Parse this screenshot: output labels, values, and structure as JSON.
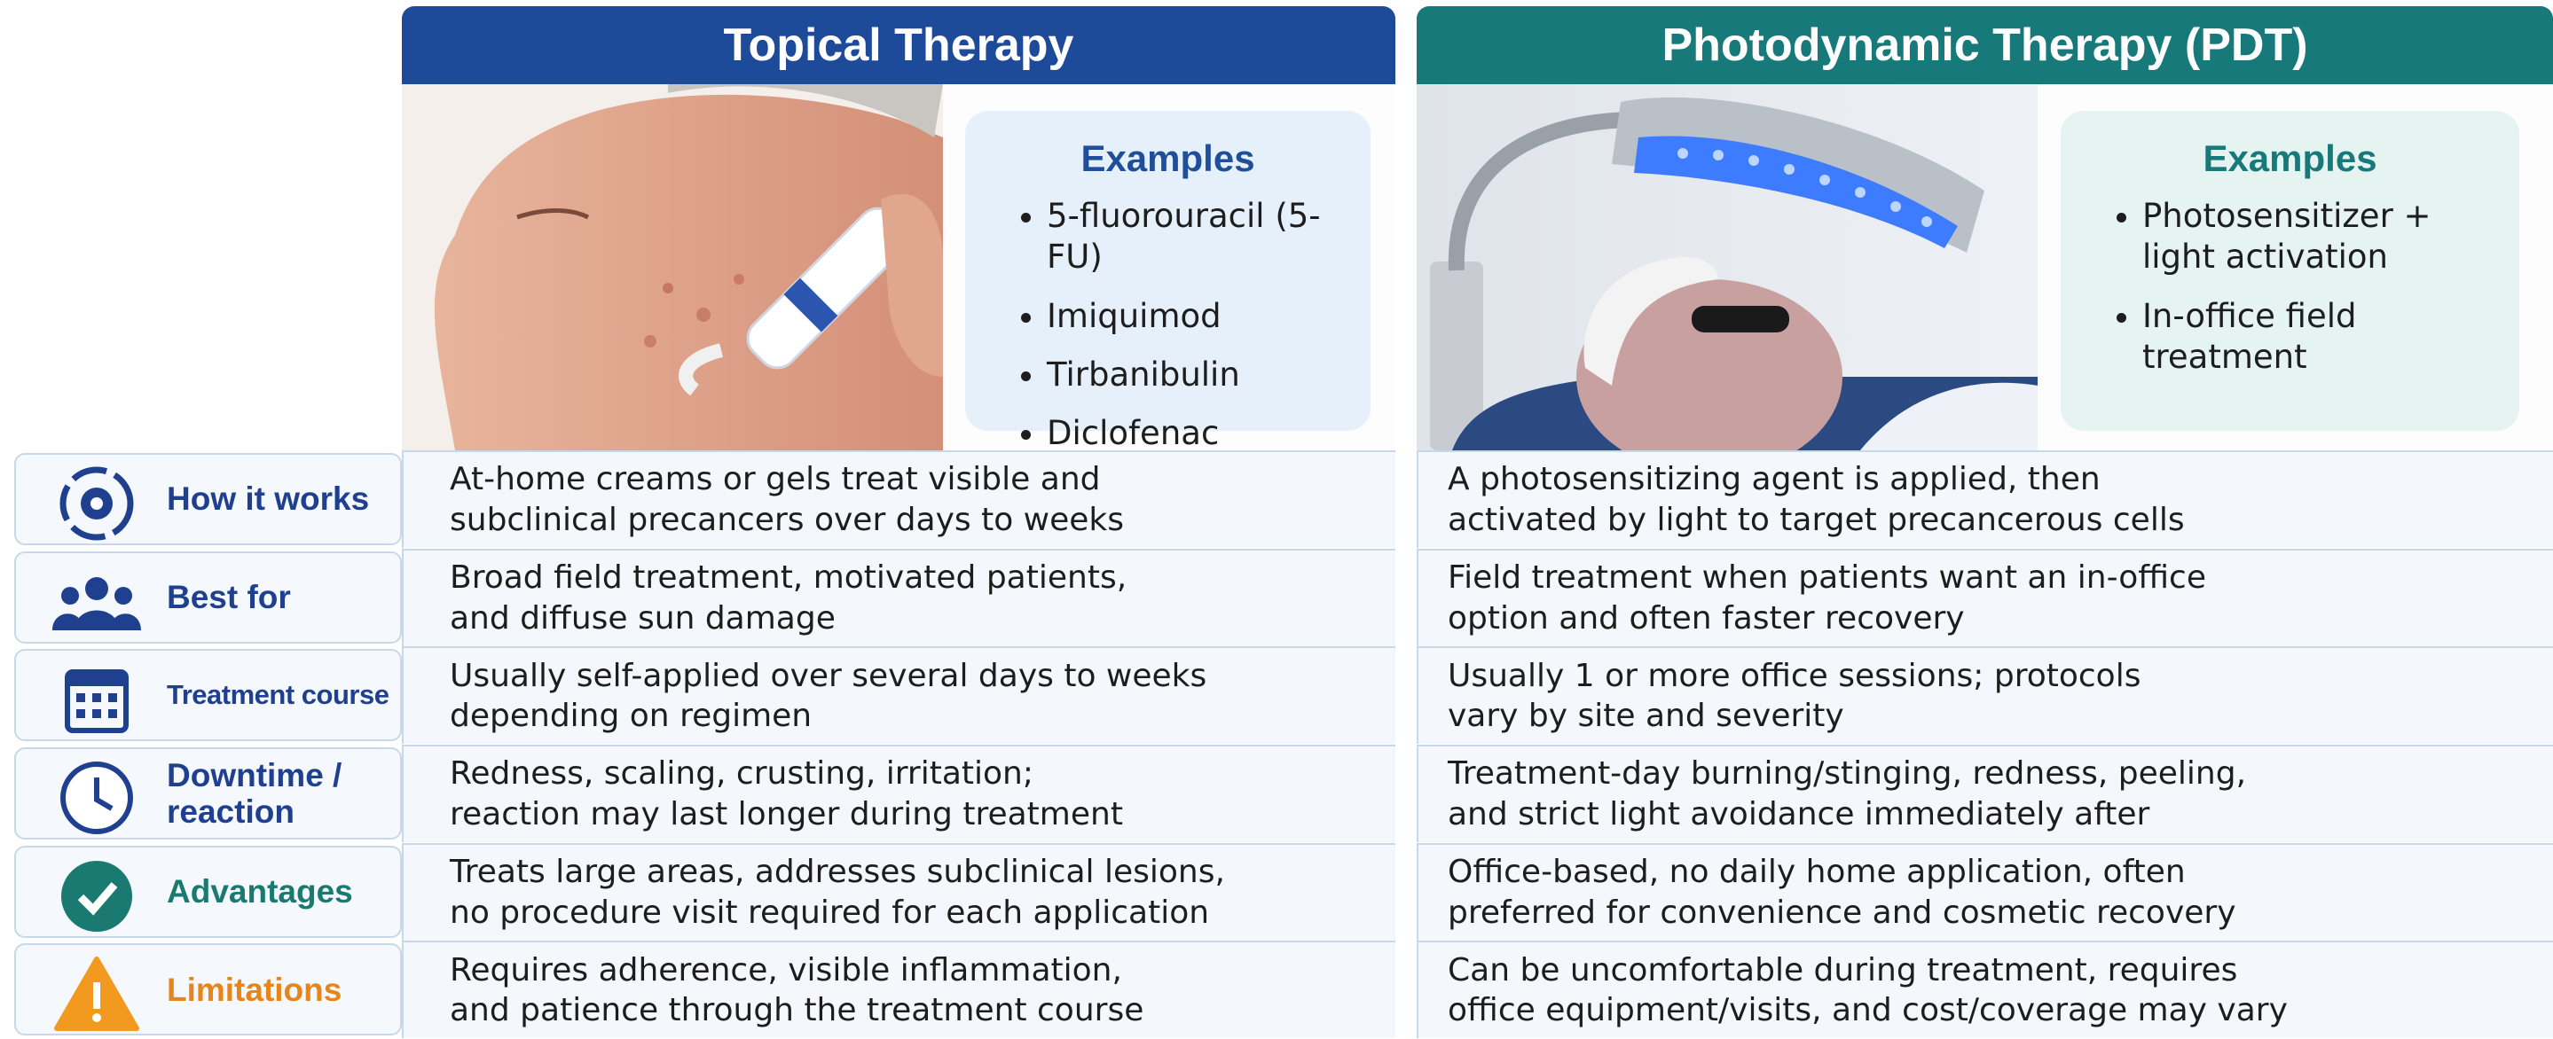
{
  "columns": [
    {
      "title": "Topical Therapy",
      "examples_title": "Examples",
      "examples": [
        "5-fluorouracil (5-FU)",
        "Imiquimod",
        "Tirbanibulin",
        "Diclofenac"
      ]
    },
    {
      "title": "Photodynamic Therapy (PDT)",
      "examples_title": "Examples",
      "examples": [
        "Photosensitizer + light activation",
        "In-office field treatment"
      ]
    }
  ],
  "rows": [
    {
      "label": "How it works",
      "cells": [
        [
          "At-home creams or gels treat visible and",
          "subclinical precancers over days to weeks"
        ],
        [
          "A photosensitizing agent is applied, then",
          "activated by light to target precancerous cells"
        ]
      ]
    },
    {
      "label": "Best for",
      "cells": [
        [
          "Broad field treatment, motivated patients,",
          "and diffuse sun damage"
        ],
        [
          "Field treatment when patients want an in-office",
          "option and often faster recovery"
        ]
      ]
    },
    {
      "label": "Treatment course",
      "cells": [
        [
          "Usually self-applied over several days to weeks",
          "depending on regimen"
        ],
        [
          "Usually 1 or more office sessions; protocols",
          "vary by site and severity"
        ]
      ]
    },
    {
      "label": "Downtime / reaction",
      "cells": [
        [
          "Redness, scaling, crusting, irritation;",
          "reaction may last longer during treatment"
        ],
        [
          "Treatment-day burning/stinging, redness, peeling,",
          "and strict light avoidance immediately after"
        ]
      ]
    },
    {
      "label": "Advantages",
      "cells": [
        [
          "Treats large areas, addresses subclinical lesions,",
          "no procedure visit required for each application"
        ],
        [
          "Office-based, no daily home application, often",
          "preferred for convenience and cosmetic recovery"
        ]
      ]
    },
    {
      "label": "Limitations",
      "cells": [
        [
          "Requires adherence, visible inflammation,",
          "and patience through the treatment course"
        ],
        [
          "Can be uncomfortable during treatment, requires",
          "office equipment/visits, and cost/coverage may vary"
        ]
      ]
    }
  ]
}
